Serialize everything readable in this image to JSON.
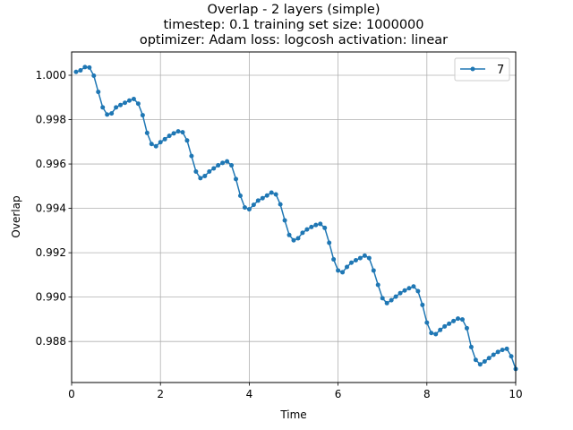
{
  "chart_data": {
    "type": "line",
    "title_lines": [
      "Overlap - 2 layers (simple)",
      "timestep: 0.1 training set size: 1000000",
      "optimizer: Adam loss: logcosh activation: linear"
    ],
    "xlabel": "Time",
    "ylabel": "Overlap",
    "xlim": [
      0,
      10
    ],
    "ylim": [
      0.98615,
      1.00105
    ],
    "xticks": [
      0,
      2,
      4,
      6,
      8,
      10
    ],
    "xtick_labels": [
      "0",
      "2",
      "4",
      "6",
      "8",
      "10"
    ],
    "yticks": [
      0.988,
      0.99,
      0.992,
      0.994,
      0.996,
      0.998,
      1.0
    ],
    "ytick_labels": [
      "0.988",
      "0.990",
      "0.992",
      "0.994",
      "0.996",
      "0.998",
      "1.000"
    ],
    "grid": true,
    "legend_position": "top-right",
    "series": [
      {
        "name": "7",
        "color": "#1f77b4",
        "marker": "circle",
        "x": [
          0.1,
          0.2,
          0.3,
          0.4,
          0.5,
          0.6,
          0.7,
          0.8,
          0.9,
          1.0,
          1.1,
          1.2,
          1.3,
          1.4,
          1.5,
          1.6,
          1.7,
          1.8,
          1.9,
          2.0,
          2.1,
          2.2,
          2.3,
          2.4,
          2.5,
          2.6,
          2.7,
          2.8,
          2.9,
          3.0,
          3.1,
          3.2,
          3.3,
          3.4,
          3.5,
          3.6,
          3.7,
          3.8,
          3.9,
          4.0,
          4.1,
          4.2,
          4.3,
          4.4,
          4.5,
          4.6,
          4.7,
          4.8,
          4.9,
          5.0,
          5.1,
          5.2,
          5.3,
          5.4,
          5.5,
          5.6,
          5.7,
          5.8,
          5.9,
          6.0,
          6.1,
          6.2,
          6.3,
          6.4,
          6.5,
          6.6,
          6.7,
          6.8,
          6.9,
          7.0,
          7.1,
          7.2,
          7.3,
          7.4,
          7.5,
          7.6,
          7.7,
          7.8,
          7.9,
          8.0,
          8.1,
          8.2,
          8.3,
          8.4,
          8.5,
          8.6,
          8.7,
          8.8,
          8.9,
          9.0,
          9.1,
          9.2,
          9.3,
          9.4,
          9.5,
          9.6,
          9.7,
          9.8,
          9.9,
          10.0
        ],
        "y": [
          1.00015,
          1.00022,
          1.00037,
          1.00035,
          0.99998,
          0.99925,
          0.99855,
          0.99823,
          0.99828,
          0.99855,
          0.99866,
          0.99876,
          0.99886,
          0.99893,
          0.99872,
          0.9982,
          0.9974,
          0.9969,
          0.9968,
          0.99698,
          0.99712,
          0.99727,
          0.99738,
          0.99747,
          0.99743,
          0.99706,
          0.99636,
          0.99566,
          0.99536,
          0.99546,
          0.99566,
          0.9958,
          0.99594,
          0.99605,
          0.99612,
          0.99594,
          0.99532,
          0.99457,
          0.99404,
          0.99396,
          0.99416,
          0.99435,
          0.99446,
          0.99458,
          0.99471,
          0.99463,
          0.99418,
          0.99346,
          0.9928,
          0.99256,
          0.99265,
          0.9929,
          0.99305,
          0.99316,
          0.99325,
          0.9933,
          0.99312,
          0.99245,
          0.9917,
          0.9912,
          0.99112,
          0.99136,
          0.99155,
          0.99166,
          0.99176,
          0.99187,
          0.99176,
          0.9912,
          0.99055,
          0.98995,
          0.98973,
          0.98986,
          0.99002,
          0.99018,
          0.9903,
          0.9904,
          0.99048,
          0.99027,
          0.98965,
          0.98885,
          0.98838,
          0.98833,
          0.98852,
          0.98868,
          0.9888,
          0.98892,
          0.98903,
          0.98899,
          0.9886,
          0.98775,
          0.98717,
          0.98697,
          0.9871,
          0.98725,
          0.9874,
          0.98753,
          0.98762,
          0.98767,
          0.98733,
          0.98676
        ]
      }
    ]
  }
}
